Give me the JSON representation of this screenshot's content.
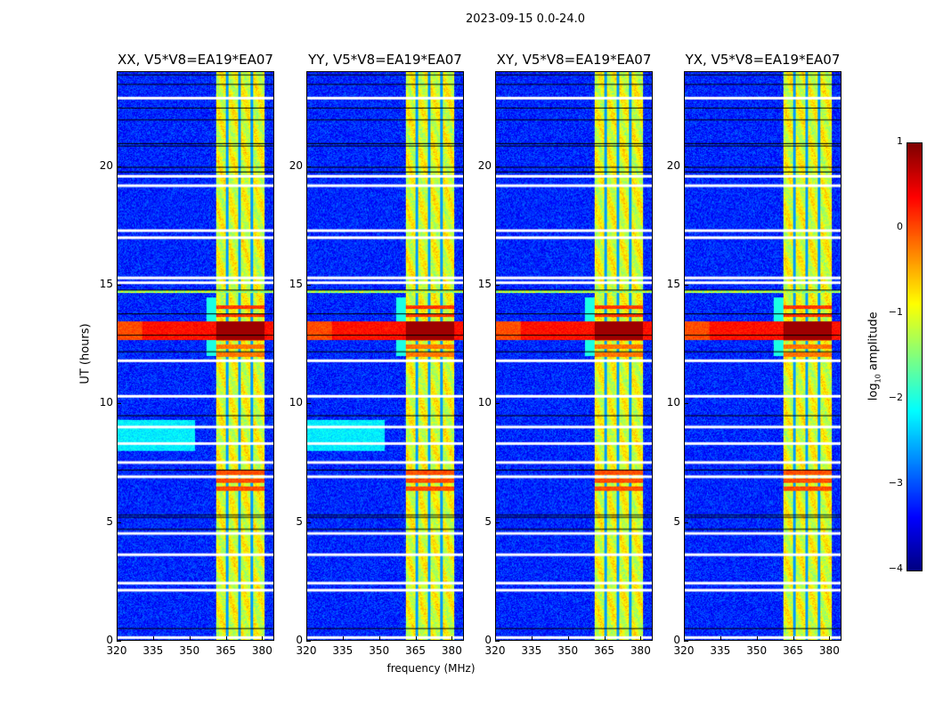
{
  "title": "2023-09-15 0.0-24.0",
  "chart_data": {
    "type": "heatmap",
    "title": "2023-09-15 0.0-24.0",
    "xlabel": "frequency (MHz)",
    "ylabel": "UT (hours)",
    "xlim": [
      320,
      385
    ],
    "ylim": [
      0,
      24
    ],
    "xticks": [
      "320",
      "335",
      "350",
      "365",
      "380"
    ],
    "yticks": [
      "0",
      "5",
      "10",
      "15",
      "20"
    ],
    "xtick_values": [
      320,
      335,
      350,
      365,
      380
    ],
    "ytick_values": [
      0,
      5,
      10,
      15,
      20
    ],
    "panels": [
      {
        "title": "XX, V5*V8=EA19*EA07",
        "cyan_haze_8_9h": true
      },
      {
        "title": "YY, V5*V8=EA19*EA07",
        "cyan_haze_8_9h": true
      },
      {
        "title": "XY, V5*V8=EA19*EA07",
        "cyan_haze_8_9h": false
      },
      {
        "title": "YX, V5*V8=EA19*EA07",
        "cyan_haze_8_9h": false
      }
    ],
    "background_log_amp": -3.2,
    "rfi_band_mhz": [
      361,
      381
    ],
    "rfi_band_log_amp": -1.0,
    "band_gaps_mhz": [
      365.6,
      370.8,
      375.9
    ],
    "strong_rfi_hours": [
      12.7,
      13.5
    ],
    "strong_rfi_log_amp": 0.3,
    "in_band_events": [
      {
        "hours": [
          13.5,
          14.2
        ],
        "log_amp": 0.1
      },
      {
        "hours": [
          6.2,
          7.2
        ],
        "log_amp": 0.0
      },
      {
        "hours": [
          11.9,
          12.7
        ],
        "log_amp": -0.2
      }
    ],
    "flagged_hours_white": [
      0.1,
      2.1,
      2.4,
      3.6,
      4.5,
      6.9,
      7.5,
      8.3,
      9.0,
      10.3,
      11.8,
      15.1,
      15.3,
      17.0,
      17.3,
      19.2,
      19.6,
      22.9
    ],
    "flagged_hours_black": [
      0.5,
      4.7,
      5.2,
      5.3,
      7.2,
      9.5,
      12.2,
      12.9,
      13.8,
      14.8,
      19.8,
      20.0,
      20.9,
      21.0,
      22.0,
      22.5,
      23.5,
      23.9
    ],
    "colorbar": {
      "label": "log10 amplitude",
      "label_main": "log",
      "label_sub": "10",
      "label_rest": " amplitude",
      "range": [
        -4,
        1
      ],
      "ticks": [
        "1",
        "0",
        "−1",
        "−2",
        "−3",
        "−4"
      ],
      "tick_values": [
        1,
        0,
        -1,
        -2,
        -3,
        -4
      ],
      "colormap": "jet"
    }
  }
}
